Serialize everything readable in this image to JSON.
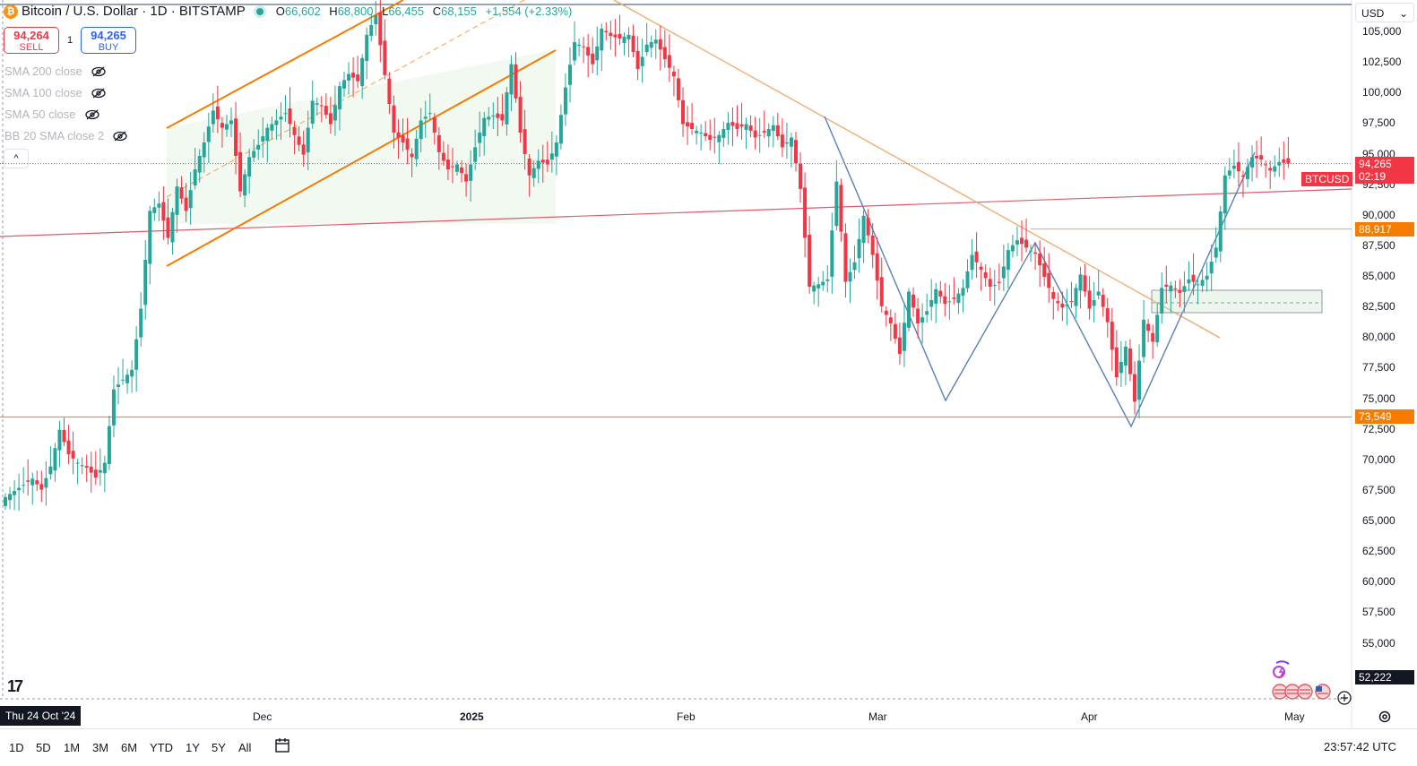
{
  "header": {
    "symbol_title": "Bitcoin / U.S. Dollar · 1D · BITSTAMP",
    "coin_glyph": "₿",
    "ohlc": [
      {
        "key": "O",
        "value": "66,602"
      },
      {
        "key": "H",
        "value": "68,800"
      },
      {
        "key": "L",
        "value": "66,455"
      },
      {
        "key": "C",
        "value": "68,155"
      }
    ],
    "change": "+1,554 (+2.33%)"
  },
  "trade": {
    "sell_price": "94,264",
    "sell_label": "SELL",
    "qty": "1",
    "buy_price": "94,265",
    "buy_label": "BUY"
  },
  "indicators": [
    "SMA 200 close",
    "SMA 100 close",
    "SMA 50 close",
    "BB 20 SMA close 2"
  ],
  "collapse_glyph": "^",
  "currency": "USD",
  "currency_chevron": "⌄",
  "colors": {
    "up": "#26a69a",
    "down": "#f23645",
    "orange": "#f57c00",
    "blue": "#5b7fb8",
    "red_line": "#e05a6a"
  },
  "chart_data": {
    "type": "candlestick",
    "title": "Bitcoin / U.S. Dollar · 1D · BITSTAMP",
    "ylim": [
      50500,
      107500
    ],
    "y_ticks": [
      "105,000",
      "102,500",
      "100,000",
      "97,500",
      "95,000",
      "92,500",
      "90,000",
      "87,500",
      "85,000",
      "82,500",
      "80,000",
      "77,500",
      "75,000",
      "72,500",
      "70,000",
      "67,500",
      "65,000",
      "62,500",
      "60,000",
      "57,500",
      "55,000"
    ],
    "x_labels": [
      {
        "label": "Dec",
        "bold": false
      },
      {
        "label": "2025",
        "bold": true
      },
      {
        "label": "Feb",
        "bold": false
      },
      {
        "label": "Mar",
        "bold": false
      },
      {
        "label": "Apr",
        "bold": false
      },
      {
        "label": "May",
        "bold": false
      }
    ],
    "price_labels": [
      {
        "text": "94,265",
        "sub": "02:19",
        "value": 94265,
        "color": "#f23645"
      },
      {
        "text": "88,917",
        "value": 88917,
        "color": "#f57c00"
      },
      {
        "text": "73,549",
        "value": 73549,
        "color": "#f57c00"
      },
      {
        "text": "52,222",
        "value": 52222,
        "color": "#131722"
      }
    ],
    "symbol_tag": "BTCUSD",
    "hover_date": "Thu 24 Oct '24",
    "close_path": [
      [
        0,
        67000
      ],
      [
        6,
        68500
      ],
      [
        8,
        67600
      ],
      [
        10,
        69500
      ],
      [
        12,
        72500
      ],
      [
        14,
        70500
      ],
      [
        16,
        69800
      ],
      [
        18,
        69400
      ],
      [
        20,
        68600
      ],
      [
        22,
        69800
      ],
      [
        24,
        75800
      ],
      [
        26,
        76600
      ],
      [
        28,
        77400
      ],
      [
        30,
        82400
      ],
      [
        32,
        90400
      ],
      [
        34,
        91000
      ],
      [
        36,
        88200
      ],
      [
        38,
        92400
      ],
      [
        40,
        90400
      ],
      [
        42,
        93800
      ],
      [
        44,
        96000
      ],
      [
        46,
        98600
      ],
      [
        48,
        97200
      ],
      [
        50,
        97800
      ],
      [
        52,
        92000
      ],
      [
        54,
        94800
      ],
      [
        56,
        95800
      ],
      [
        58,
        97200
      ],
      [
        60,
        97800
      ],
      [
        62,
        98400
      ],
      [
        64,
        96600
      ],
      [
        66,
        95000
      ],
      [
        68,
        99400
      ],
      [
        70,
        99000
      ],
      [
        72,
        97500
      ],
      [
        74,
        100600
      ],
      [
        76,
        101600
      ],
      [
        78,
        101000
      ],
      [
        80,
        104800
      ],
      [
        82,
        106400
      ],
      [
        84,
        101500
      ],
      [
        86,
        96800
      ],
      [
        88,
        96000
      ],
      [
        90,
        94800
      ],
      [
        92,
        97800
      ],
      [
        94,
        98400
      ],
      [
        96,
        95200
      ],
      [
        98,
        93800
      ],
      [
        100,
        94200
      ],
      [
        102,
        92800
      ],
      [
        104,
        95600
      ],
      [
        106,
        98000
      ],
      [
        108,
        98200
      ],
      [
        110,
        97800
      ],
      [
        112,
        102400
      ],
      [
        114,
        96800
      ],
      [
        116,
        93300
      ],
      [
        118,
        94500
      ],
      [
        120,
        94200
      ],
      [
        122,
        96000
      ],
      [
        124,
        100500
      ],
      [
        126,
        104200
      ],
      [
        128,
        103800
      ],
      [
        130,
        102400
      ],
      [
        132,
        105300
      ],
      [
        134,
        104700
      ],
      [
        136,
        104500
      ],
      [
        138,
        104800
      ],
      [
        140,
        102000
      ],
      [
        142,
        104000
      ],
      [
        144,
        104400
      ],
      [
        146,
        102800
      ],
      [
        148,
        101400
      ],
      [
        150,
        97500
      ],
      [
        152,
        97100
      ],
      [
        154,
        96800
      ],
      [
        156,
        96200
      ],
      [
        158,
        96600
      ],
      [
        160,
        97600
      ],
      [
        162,
        97100
      ],
      [
        164,
        97500
      ],
      [
        166,
        96400
      ],
      [
        168,
        96800
      ],
      [
        170,
        97400
      ],
      [
        172,
        95600
      ],
      [
        174,
        96400
      ],
      [
        176,
        92200
      ],
      [
        178,
        84200
      ],
      [
        180,
        84400
      ],
      [
        182,
        84800
      ],
      [
        184,
        92800
      ],
      [
        186,
        84600
      ],
      [
        188,
        86200
      ],
      [
        190,
        90000
      ],
      [
        192,
        86800
      ],
      [
        194,
        82600
      ],
      [
        196,
        81200
      ],
      [
        198,
        78700
      ],
      [
        200,
        83800
      ],
      [
        202,
        81200
      ],
      [
        204,
        82200
      ],
      [
        206,
        84000
      ],
      [
        208,
        82800
      ],
      [
        210,
        83200
      ],
      [
        212,
        84100
      ],
      [
        214,
        86800
      ],
      [
        216,
        85600
      ],
      [
        218,
        84200
      ],
      [
        220,
        84500
      ],
      [
        222,
        87200
      ],
      [
        224,
        88000
      ],
      [
        226,
        87400
      ],
      [
        228,
        86900
      ],
      [
        230,
        85000
      ],
      [
        232,
        83200
      ],
      [
        234,
        82500
      ],
      [
        236,
        83000
      ],
      [
        238,
        85200
      ],
      [
        240,
        82400
      ],
      [
        242,
        83800
      ],
      [
        244,
        81300
      ],
      [
        246,
        76800
      ],
      [
        248,
        79300
      ],
      [
        250,
        74800
      ],
      [
        252,
        81500
      ],
      [
        254,
        79700
      ],
      [
        256,
        84100
      ],
      [
        258,
        84300
      ],
      [
        260,
        83700
      ],
      [
        262,
        84800
      ],
      [
        264,
        84400
      ],
      [
        266,
        85100
      ],
      [
        268,
        87400
      ],
      [
        270,
        93300
      ],
      [
        272,
        94100
      ],
      [
        274,
        93200
      ],
      [
        276,
        94800
      ],
      [
        278,
        94600
      ],
      [
        280,
        93700
      ],
      [
        282,
        94400
      ],
      [
        284,
        94265
      ]
    ]
  },
  "timeframes": [
    "1D",
    "5D",
    "1M",
    "3M",
    "6M",
    "YTD",
    "1Y",
    "5Y",
    "All"
  ],
  "clock": "23:57:42 UTC",
  "logo_text": "17"
}
